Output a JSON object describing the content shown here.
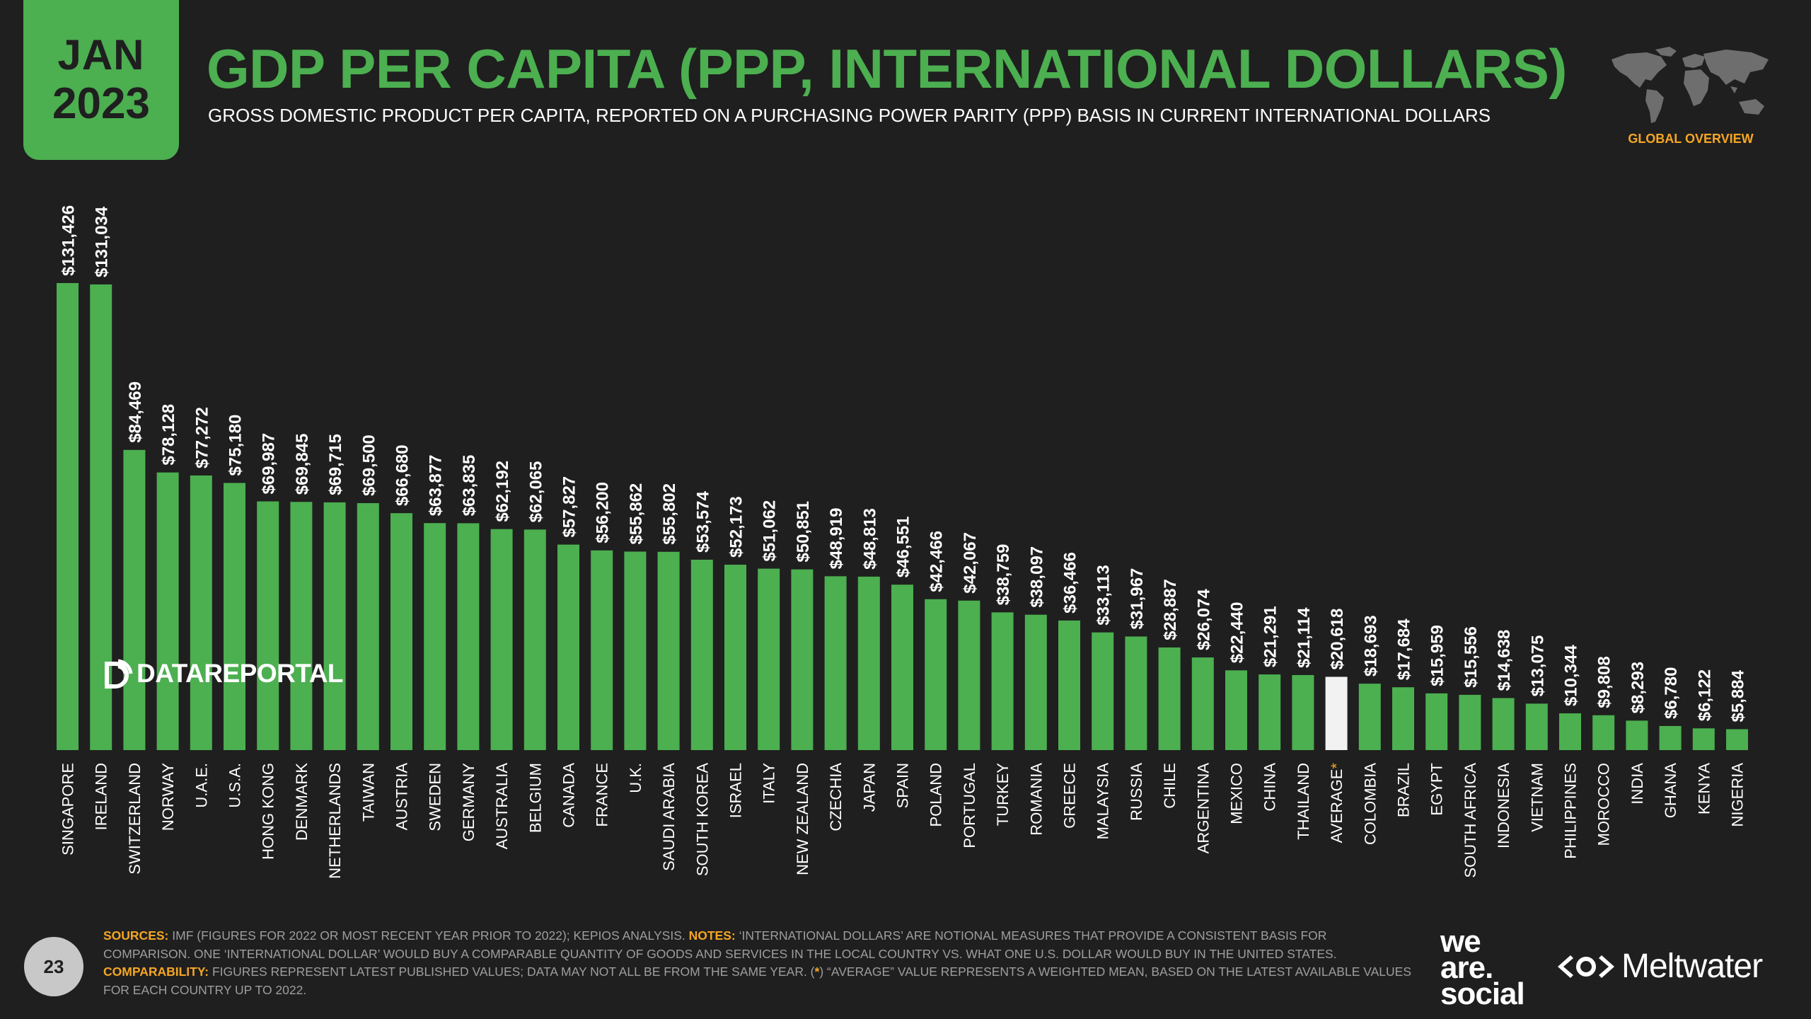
{
  "header": {
    "month": "JAN",
    "year": "2023",
    "title": "GDP PER CAPITA (PPP, INTERNATIONAL DOLLARS)",
    "subtitle": "GROSS DOMESTIC PRODUCT PER CAPITA, REPORTED ON A PURCHASING POWER PARITY (PPP) BASIS IN CURRENT INTERNATIONAL DOLLARS",
    "section_label": "GLOBAL OVERVIEW",
    "map_icon": "world-map-icon"
  },
  "colors": {
    "background": "#1f1f1f",
    "accent_green": "#4caf50",
    "highlight_bar": "#f2f2f2",
    "orange": "#f5a623",
    "footer_text": "#9e9e9e"
  },
  "watermark": {
    "text": "DATAREPORTAL",
    "icon": "datareportal-icon"
  },
  "chart_data": {
    "type": "bar",
    "title": "GDP PER CAPITA (PPP, INTERNATIONAL DOLLARS)",
    "xlabel": "",
    "ylabel": "",
    "ylim": [
      0,
      140000
    ],
    "grid": false,
    "highlight_category": "AVERAGE",
    "categories": [
      "SINGAPORE",
      "IRELAND",
      "SWITZERLAND",
      "NORWAY",
      "U.A.E.",
      "U.S.A.",
      "HONG KONG",
      "DENMARK",
      "NETHERLANDS",
      "TAIWAN",
      "AUSTRIA",
      "SWEDEN",
      "GERMANY",
      "AUSTRALIA",
      "BELGIUM",
      "CANADA",
      "FRANCE",
      "U.K.",
      "SAUDI ARABIA",
      "SOUTH KOREA",
      "ISRAEL",
      "ITALY",
      "NEW ZEALAND",
      "CZECHIA",
      "JAPAN",
      "SPAIN",
      "POLAND",
      "PORTUGAL",
      "TURKEY",
      "ROMANIA",
      "GREECE",
      "MALAYSIA",
      "RUSSIA",
      "CHILE",
      "ARGENTINA",
      "MEXICO",
      "CHINA",
      "THAILAND",
      "AVERAGE",
      "COLOMBIA",
      "BRAZIL",
      "EGYPT",
      "SOUTH AFRICA",
      "INDONESIA",
      "VIETNAM",
      "PHILIPPINES",
      "MOROCCO",
      "INDIA",
      "GHANA",
      "KENYA",
      "NIGERIA"
    ],
    "values": [
      131426,
      131034,
      84469,
      78128,
      77272,
      75180,
      69987,
      69845,
      69715,
      69500,
      66680,
      63877,
      63835,
      62192,
      62065,
      57827,
      56200,
      55862,
      55802,
      53574,
      52173,
      51062,
      50851,
      48919,
      48813,
      46551,
      42466,
      42067,
      38759,
      38097,
      36466,
      33113,
      31967,
      28887,
      26074,
      22440,
      21291,
      21114,
      20618,
      18693,
      17684,
      15959,
      15556,
      14638,
      13075,
      10344,
      9808,
      8293,
      6780,
      6122,
      5884
    ],
    "labels": [
      "$131,426",
      "$131,034",
      "$84,469",
      "$78,128",
      "$77,272",
      "$75,180",
      "$69,987",
      "$69,845",
      "$69,715",
      "$69,500",
      "$66,680",
      "$63,877",
      "$63,835",
      "$62,192",
      "$62,065",
      "$57,827",
      "$56,200",
      "$55,862",
      "$55,802",
      "$53,574",
      "$52,173",
      "$51,062",
      "$50,851",
      "$48,919",
      "$48,813",
      "$46,551",
      "$42,466",
      "$42,067",
      "$38,759",
      "$38,097",
      "$36,466",
      "$33,113",
      "$31,967",
      "$28,887",
      "$26,074",
      "$22,440",
      "$21,291",
      "$21,114",
      "$20,618",
      "$18,693",
      "$17,684",
      "$15,959",
      "$15,556",
      "$14,638",
      "$13,075",
      "$10,344",
      "$9,808",
      "$8,293",
      "$6,780",
      "$6,122",
      "$5,884"
    ],
    "asterisk_marker": "*"
  },
  "footer": {
    "page_number": "23",
    "sources_label": "SOURCES:",
    "sources_text": "IMF (FIGURES FOR 2022 OR MOST RECENT YEAR PRIOR TO 2022); KEPIOS ANALYSIS.",
    "notes_label": "NOTES:",
    "notes_text": "‘INTERNATIONAL DOLLARS’ ARE NOTIONAL MEASURES THAT PROVIDE A CONSISTENT BASIS FOR COMPARISON. ONE ‘INTERNATIONAL DOLLAR’ WOULD BUY A COMPARABLE QUANTITY OF GOODS AND SERVICES IN THE LOCAL COUNTRY vs. WHAT ONE U.S. DOLLAR WOULD BUY IN THE UNITED STATES.",
    "comparability_label": "COMPARABILITY:",
    "comparability_text_1": "FIGURES REPRESENT LATEST PUBLISHED VALUES; DATA MAY NOT ALL BE FROM THE SAME YEAR. (",
    "comparability_asterisk": "*",
    "comparability_text_2": ") “AVERAGE” VALUE REPRESENTS A WEIGHTED MEAN, BASED ON THE LATEST AVAILABLE VALUES FOR EACH COUNTRY UP TO 2022."
  },
  "logos": {
    "wearesocial_line1": "we",
    "wearesocial_line2": "are.",
    "wearesocial_line3": "social",
    "meltwater_text": "Meltwater",
    "meltwater_icon": "meltwater-icon"
  }
}
